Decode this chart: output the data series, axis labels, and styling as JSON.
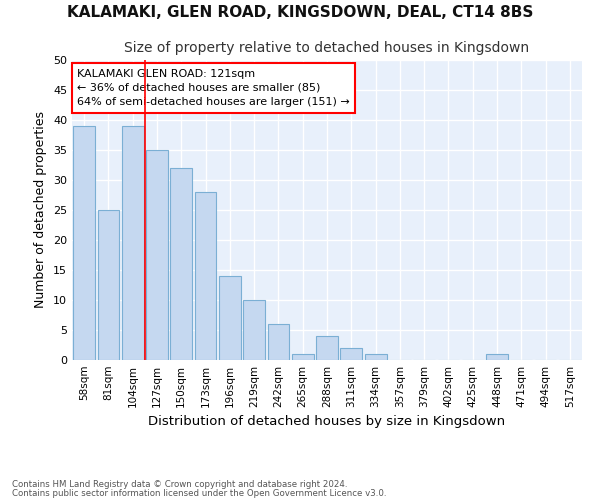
{
  "title": "KALAMAKI, GLEN ROAD, KINGSDOWN, DEAL, CT14 8BS",
  "subtitle": "Size of property relative to detached houses in Kingsdown",
  "xlabel": "Distribution of detached houses by size in Kingsdown",
  "ylabel": "Number of detached properties",
  "bar_labels": [
    "58sqm",
    "81sqm",
    "104sqm",
    "127sqm",
    "150sqm",
    "173sqm",
    "196sqm",
    "219sqm",
    "242sqm",
    "265sqm",
    "288sqm",
    "311sqm",
    "334sqm",
    "357sqm",
    "379sqm",
    "402sqm",
    "425sqm",
    "448sqm",
    "471sqm",
    "494sqm",
    "517sqm"
  ],
  "bar_values": [
    39,
    25,
    39,
    35,
    32,
    28,
    14,
    10,
    6,
    1,
    4,
    2,
    1,
    0,
    0,
    0,
    0,
    1,
    0,
    0,
    0
  ],
  "bar_color": "#c5d8f0",
  "bar_edge_color": "#7bafd4",
  "red_line_x": 3.0,
  "annotation_title": "KALAMAKI GLEN ROAD: 121sqm",
  "annotation_line1": "← 36% of detached houses are smaller (85)",
  "annotation_line2": "64% of semi-detached houses are larger (151) →",
  "ylim": [
    0,
    50
  ],
  "yticks": [
    0,
    5,
    10,
    15,
    20,
    25,
    30,
    35,
    40,
    45,
    50
  ],
  "footer1": "Contains HM Land Registry data © Crown copyright and database right 2024.",
  "footer2": "Contains public sector information licensed under the Open Government Licence v3.0.",
  "bg_color": "#e8f0fb",
  "grid_color": "#ffffff",
  "fig_bg_color": "#ffffff"
}
